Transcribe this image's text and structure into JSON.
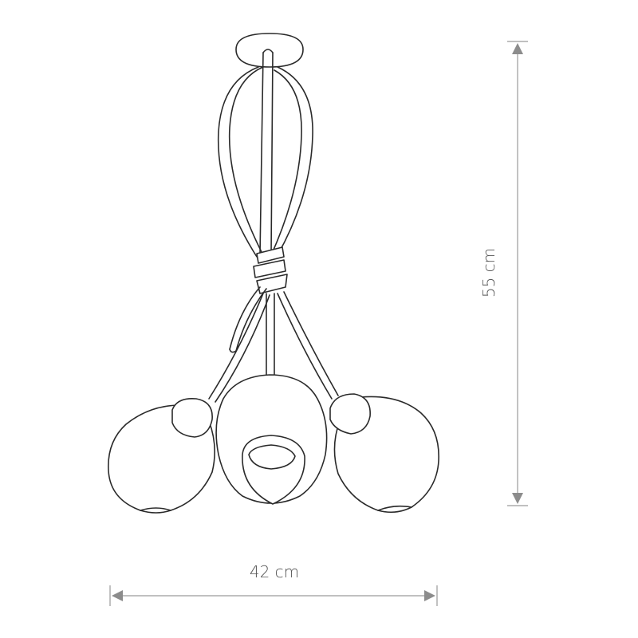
{
  "dimensions": {
    "height_label": "55 cm",
    "width_label": "42 cm"
  },
  "colors": {
    "line": "#2a2a2a",
    "dimension": "#9a9a9a",
    "text": "#555555",
    "background": "#ffffff"
  }
}
